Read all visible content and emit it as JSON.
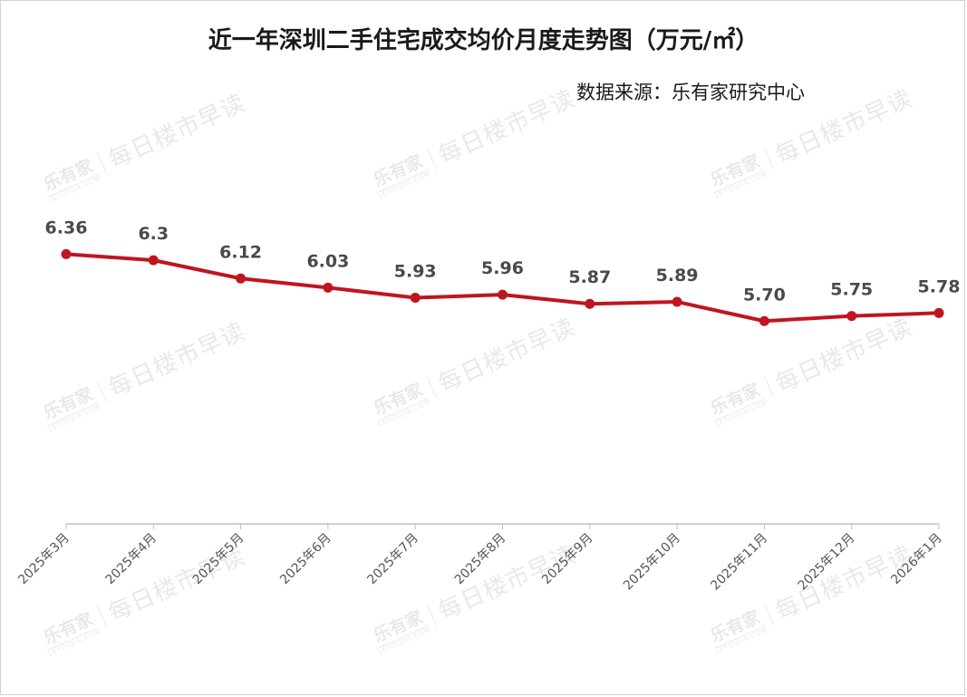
{
  "chart_data": {
    "type": "line",
    "title": "近一年深圳二手住宅成交均价月度走势图（万元/㎡）",
    "source": "数据来源：乐有家研究中心",
    "categories": [
      "2025年3月",
      "2025年4月",
      "2025年5月",
      "2025年6月",
      "2025年7月",
      "2025年8月",
      "2025年9月",
      "2025年10月",
      "2025年11月",
      "2025年12月",
      "2026年1月"
    ],
    "values": [
      6.36,
      6.3,
      6.12,
      6.03,
      5.93,
      5.96,
      5.87,
      5.89,
      5.7,
      5.75,
      5.78
    ],
    "data_labels": [
      "6.36",
      "6.3",
      "6.12",
      "6.03",
      "5.93",
      "5.96",
      "5.87",
      "5.89",
      "5.70",
      "5.75",
      "5.78"
    ],
    "ylim": [
      3.7,
      6.9
    ],
    "grid": false,
    "legend": "none",
    "line_color": "#c0151e"
  },
  "watermark": {
    "logo": "乐有家",
    "logo_sub": "LEYOUJIA.COM",
    "slogan": "每日楼市早读"
  }
}
